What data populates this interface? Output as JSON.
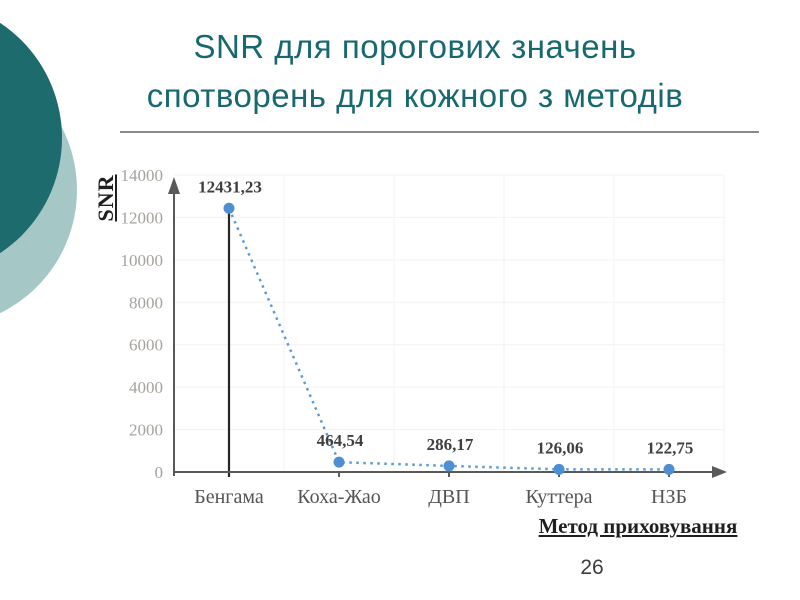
{
  "slide": {
    "title_line1": "SNR для порогових значень",
    "title_line2": "спотворень для кожного з методів",
    "page_number": "26"
  },
  "colors": {
    "title_teal": "#17696f",
    "circle_dark": "#1e6b6d",
    "circle_light": "#a5c8c6",
    "point_blue": "#4e8fd2",
    "line_blue": "#5b9bd5",
    "axis_gray": "#595959",
    "grid_gray": "#f2f2f2",
    "tick_label_gray": "#a6a29c",
    "data_label_gray": "#3f3f3f",
    "category_gray": "#545454",
    "drop_line_black": "#262626"
  },
  "chart_data": {
    "type": "line",
    "title": "SNR для порогових значень спотворень для кожного з методів",
    "categories": [
      "Бенгама",
      "Коха-Жао",
      "ДВП",
      "Куттера",
      "НЗБ"
    ],
    "values": [
      12431.23,
      464.54,
      286.17,
      126.06,
      122.75
    ],
    "value_labels": [
      "12431,23",
      "464,54",
      "286,17",
      "126,06",
      "122,75"
    ],
    "ylabel": "SNR",
    "xlabel": "Метод приховування",
    "ylim": [
      0,
      14000
    ],
    "ytick_step": 2000,
    "yticks": [
      "0",
      "2000",
      "4000",
      "6000",
      "8000",
      "10000",
      "12000",
      "14000"
    ],
    "grid": true,
    "legend": "none",
    "line_style": "dotted",
    "marker": "circle",
    "drop_line_category_index": 0
  }
}
